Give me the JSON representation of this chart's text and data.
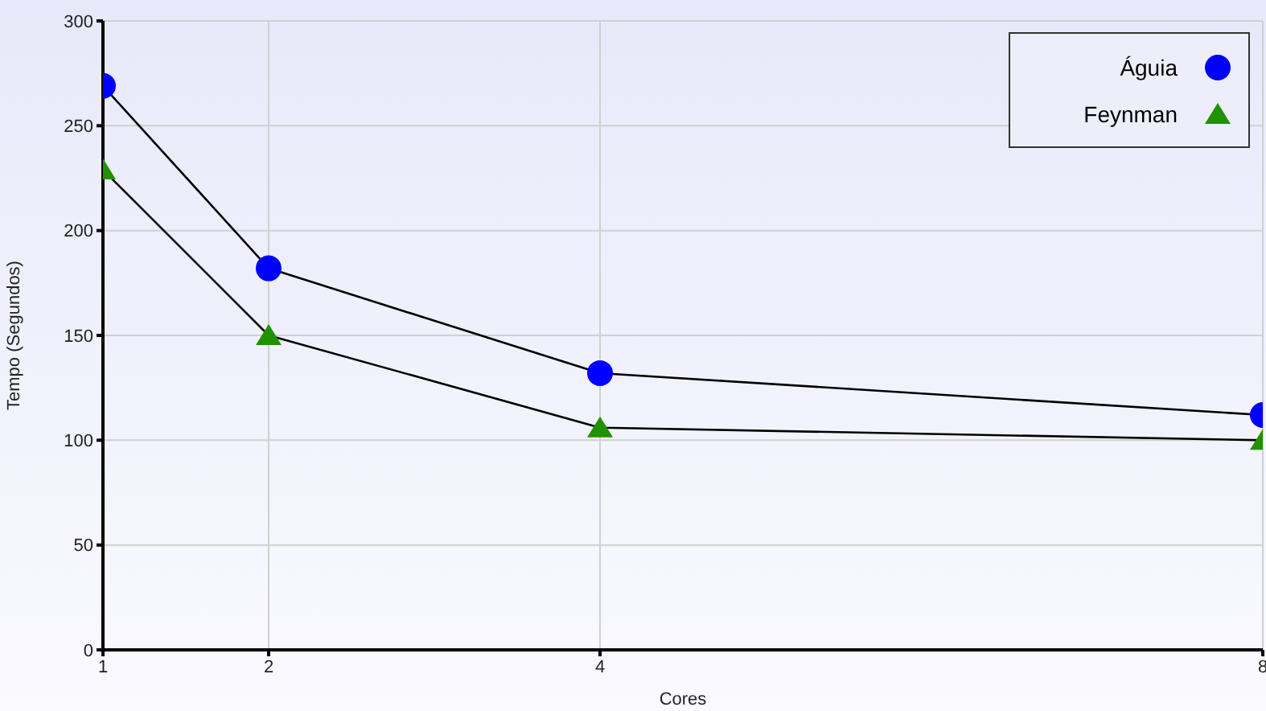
{
  "chart_data": {
    "type": "line",
    "xlabel": "Cores",
    "ylabel": "Tempo (Segundos)",
    "x": [
      1,
      2,
      4,
      8
    ],
    "series": [
      {
        "name": "Águia",
        "color": "#0000ff",
        "marker": "circle",
        "values": [
          269,
          182,
          132,
          112
        ]
      },
      {
        "name": "Feynman",
        "color": "#229100",
        "marker": "triangle",
        "values": [
          229,
          150,
          106,
          100
        ]
      }
    ],
    "xlim": [
      1,
      8
    ],
    "xticks": [
      1,
      2,
      4,
      8
    ],
    "ylim": [
      0,
      300
    ],
    "yticks": [
      0,
      50,
      100,
      150,
      200,
      250,
      300
    ],
    "grid": true,
    "legend": "top right"
  }
}
